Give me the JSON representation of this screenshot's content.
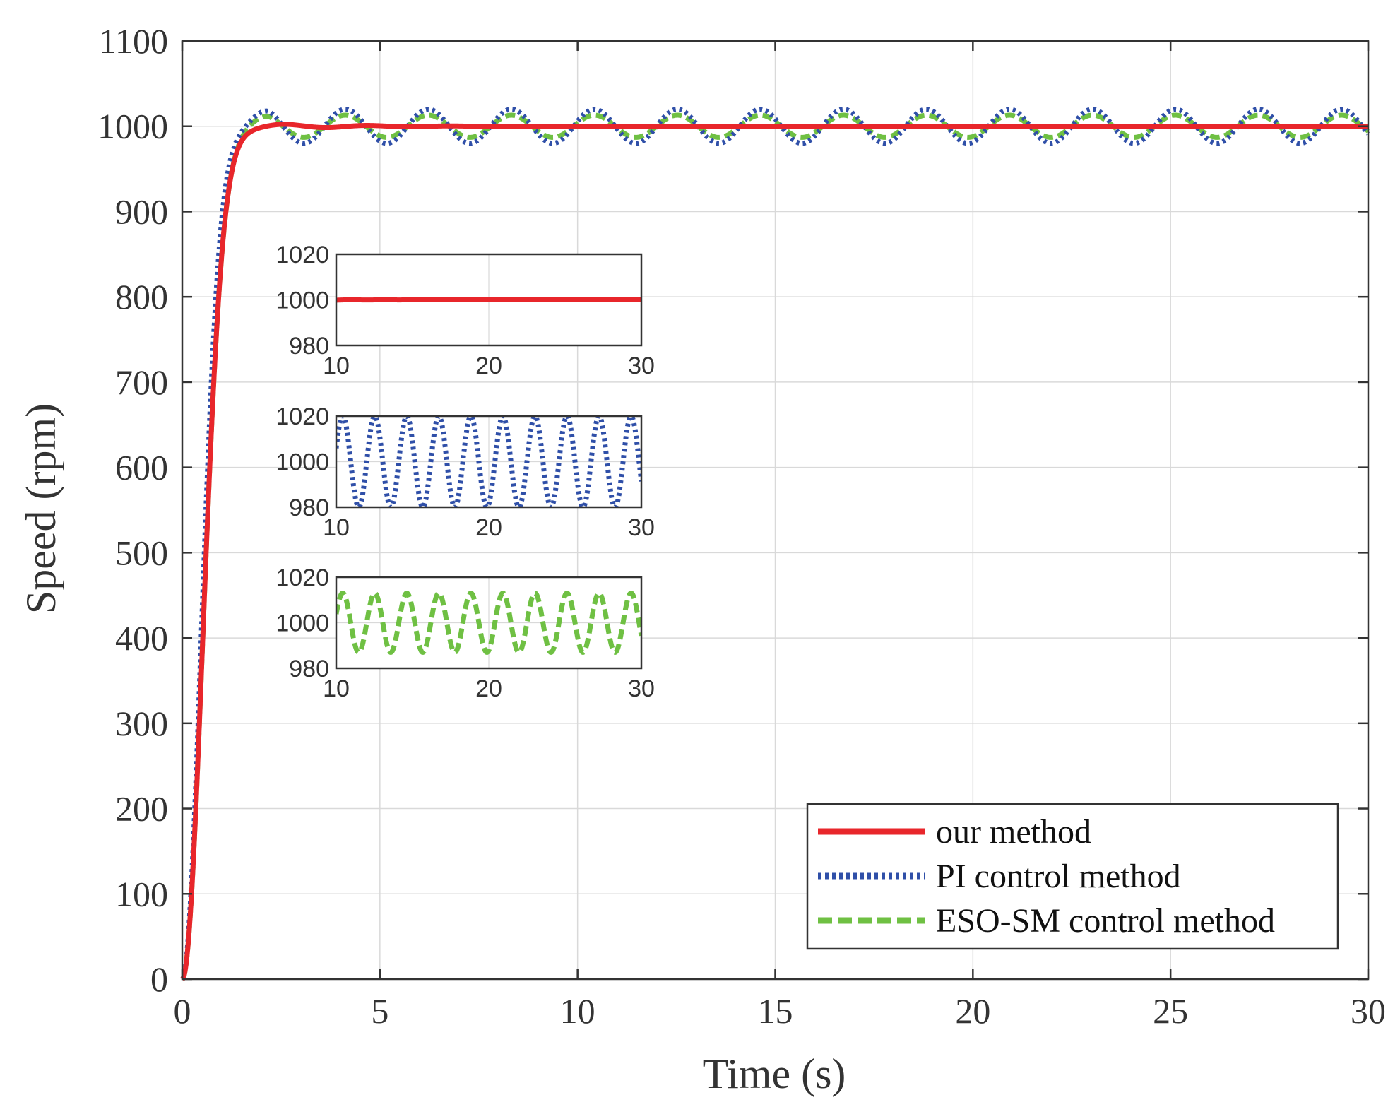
{
  "chart_data": {
    "type": "line",
    "title": "",
    "xlabel": "Time (s)",
    "ylabel": "Speed (rpm)",
    "xlim": [
      0,
      30
    ],
    "ylim": [
      0,
      1100
    ],
    "xticks": [
      "0",
      "5",
      "10",
      "15",
      "20",
      "25",
      "30"
    ],
    "yticks": [
      "0",
      "100",
      "200",
      "300",
      "400",
      "500",
      "600",
      "700",
      "800",
      "900",
      "1000",
      "1100"
    ],
    "grid": true,
    "legend_position": "bottom-right",
    "colors": {
      "our": "#e8262b",
      "pi": "#2f4fa8",
      "eso": "#6fc043",
      "axis": "#333333",
      "grid": "#d9d9d9"
    },
    "series": [
      {
        "name": "our method",
        "style": "solid",
        "setpoint": 1000,
        "rise_time": 1.3,
        "steady_ripple_amplitude": 1,
        "settle_time": 8
      },
      {
        "name": "PI control method",
        "style": "dotted",
        "setpoint": 1000,
        "rise_time": 1.2,
        "oscillation_amplitude": 20,
        "oscillation_period": 2.1
      },
      {
        "name": "ESO-SM control method",
        "style": "dashed",
        "setpoint": 1000,
        "rise_time": 1.3,
        "oscillation_amplitude": 13,
        "oscillation_period": 2.1
      }
    ],
    "insets": [
      {
        "series": "our method",
        "xlim": [
          10,
          30
        ],
        "ylim": [
          980,
          1020
        ],
        "xticks": [
          "10",
          "20",
          "30"
        ],
        "yticks": [
          "980",
          "1000",
          "1020"
        ]
      },
      {
        "series": "PI control method",
        "xlim": [
          10,
          30
        ],
        "ylim": [
          980,
          1020
        ],
        "xticks": [
          "10",
          "20",
          "30"
        ],
        "yticks": [
          "980",
          "1000",
          "1020"
        ]
      },
      {
        "series": "ESO-SM control method",
        "xlim": [
          10,
          30
        ],
        "ylim": [
          980,
          1020
        ],
        "xticks": [
          "10",
          "20",
          "30"
        ],
        "yticks": [
          "980",
          "1000",
          "1020"
        ]
      }
    ]
  }
}
